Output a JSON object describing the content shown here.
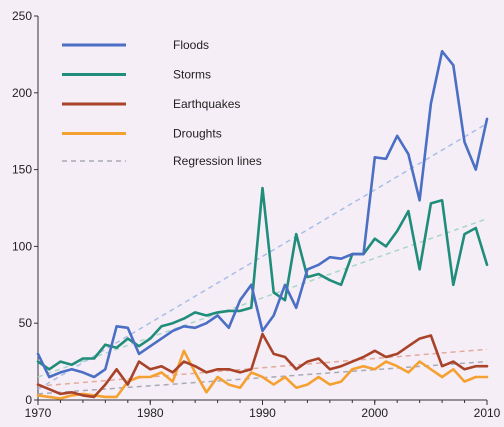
{
  "chart_data": {
    "type": "line",
    "title": "",
    "xlabel": "",
    "ylabel": "",
    "xlim": [
      1970,
      2010
    ],
    "ylim": [
      0,
      250
    ],
    "x_ticks": [
      "1970",
      "1980",
      "1990",
      "2000",
      "2010"
    ],
    "y_ticks": [
      "0",
      "50",
      "100",
      "150",
      "200",
      "250"
    ],
    "grid": false,
    "legend_position": "top-left",
    "x": [
      1970,
      1971,
      1972,
      1973,
      1974,
      1975,
      1976,
      1977,
      1978,
      1979,
      1980,
      1981,
      1982,
      1983,
      1984,
      1985,
      1986,
      1987,
      1988,
      1989,
      1990,
      1991,
      1992,
      1993,
      1994,
      1995,
      1996,
      1997,
      1998,
      1999,
      2000,
      2001,
      2002,
      2003,
      2004,
      2005,
      2006,
      2007,
      2008,
      2009,
      2010
    ],
    "series": [
      {
        "name": "Floods",
        "color": "#4a6fc4",
        "values": [
          30,
          15,
          18,
          20,
          18,
          15,
          20,
          48,
          47,
          30,
          35,
          40,
          45,
          48,
          47,
          50,
          55,
          47,
          65,
          75,
          45,
          55,
          75,
          60,
          85,
          88,
          93,
          92,
          95,
          95,
          158,
          157,
          172,
          160,
          130,
          193,
          227,
          218,
          168,
          150,
          183
        ]
      },
      {
        "name": "Storms",
        "color": "#1f8d7a",
        "values": [
          25,
          20,
          25,
          23,
          27,
          27,
          36,
          34,
          40,
          35,
          40,
          48,
          50,
          53,
          57,
          55,
          57,
          58,
          58,
          60,
          138,
          70,
          65,
          108,
          80,
          82,
          78,
          75,
          95,
          95,
          105,
          100,
          110,
          123,
          85,
          128,
          130,
          75,
          108,
          112,
          88
        ]
      },
      {
        "name": "Earthquakes",
        "color": "#a8432a",
        "values": [
          10,
          7,
          4,
          5,
          3,
          2,
          10,
          20,
          10,
          25,
          20,
          22,
          18,
          25,
          22,
          18,
          20,
          20,
          18,
          20,
          43,
          30,
          28,
          20,
          25,
          27,
          20,
          22,
          25,
          28,
          32,
          28,
          30,
          35,
          40,
          42,
          22,
          25,
          20,
          22,
          22
        ]
      },
      {
        "name": "Droughts",
        "color": "#f5a131",
        "values": [
          3,
          2,
          1,
          3,
          4,
          3,
          2,
          2,
          12,
          15,
          15,
          18,
          12,
          32,
          18,
          5,
          15,
          10,
          8,
          18,
          15,
          10,
          15,
          8,
          10,
          15,
          10,
          12,
          20,
          22,
          20,
          25,
          22,
          18,
          25,
          20,
          15,
          20,
          12,
          15,
          15
        ]
      }
    ],
    "regression_lines": {
      "name": "Regression lines",
      "color": "#a8aab4",
      "style": "dashed",
      "lines": [
        {
          "series": "Floods",
          "color": "#a9bde8",
          "x": [
            1970,
            2010
          ],
          "y": [
            7,
            180
          ]
        },
        {
          "series": "Storms",
          "color": "#a9d6c9",
          "x": [
            1970,
            2010
          ],
          "y": [
            15,
            118
          ]
        },
        {
          "series": "Earthquakes",
          "color": "#e2aa9c",
          "x": [
            1970,
            2010
          ],
          "y": [
            9,
            33
          ]
        },
        {
          "series": "Droughts",
          "color": "#a8aab4",
          "x": [
            1970,
            2010
          ],
          "y": [
            4,
            25
          ]
        }
      ]
    }
  }
}
